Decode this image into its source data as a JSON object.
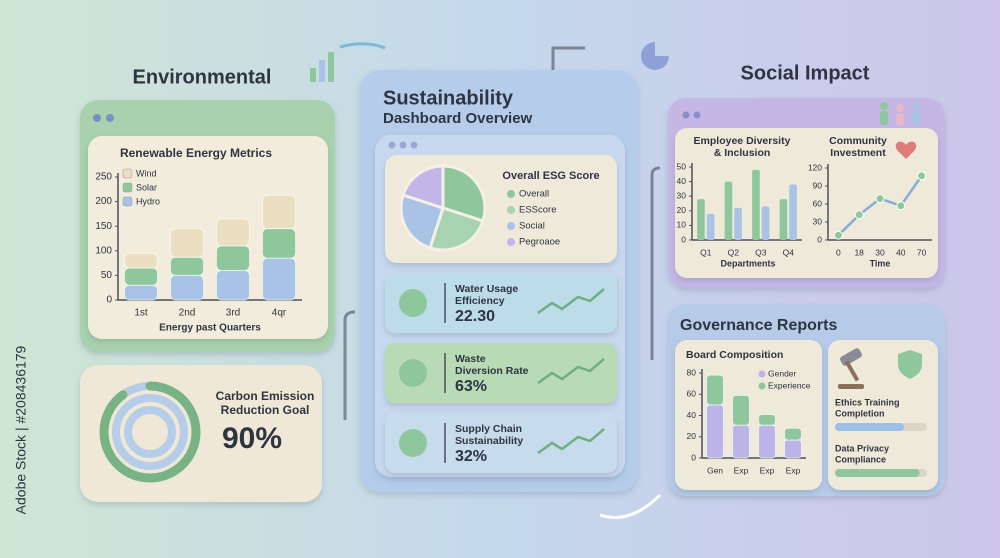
{
  "watermark": "Adobe Stock | #208436179",
  "environmental": {
    "title": "Environmental",
    "renewable": {
      "type": "bar",
      "stacked": true,
      "title": "Renewable Energy Metrics",
      "x_label": "Energy past Quarters",
      "categories": [
        "1st",
        "2nd",
        "3rd",
        "4qr"
      ],
      "series": [
        {
          "name": "Hydro",
          "color": "#a9c3e6",
          "values": [
            30,
            50,
            60,
            85
          ]
        },
        {
          "name": "Solar",
          "color": "#8fc79c",
          "values": [
            35,
            37,
            50,
            60
          ]
        },
        {
          "name": "Wind",
          "color": "#ebdfc2",
          "values": [
            30,
            58,
            55,
            68
          ]
        }
      ],
      "legend_order": [
        2,
        1,
        0
      ],
      "ylim": [
        0,
        250
      ],
      "yticks": [
        0,
        50,
        100,
        150,
        200,
        250
      ]
    },
    "carbon": {
      "title": [
        "Carbon Emission",
        "Reduction Goal"
      ],
      "value": 90,
      "value_label": "90%",
      "xlim": [
        0,
        100
      ],
      "color": "#78b386"
    }
  },
  "overview": {
    "title": "Sustainability",
    "subtitle": "Dashboard Overview",
    "esg": {
      "type": "pie",
      "title": "Overall ESG Score",
      "categories": [
        "Overall",
        "ESScore",
        "Social",
        "Pegroaoe"
      ],
      "values": [
        30,
        25,
        25,
        20
      ],
      "colors": [
        "#8fc79c",
        "#a7d3b0",
        "#a9c3e6",
        "#c2b6e8"
      ]
    },
    "metrics": [
      {
        "label": [
          "Water Usage",
          "Efficiency"
        ],
        "value": 22.3,
        "value_label": "22.30"
      },
      {
        "label": [
          "Waste",
          "Diversion Rate"
        ],
        "value": 63,
        "value_label": "63%"
      },
      {
        "label": [
          "Supply Chain",
          "Sustainability"
        ],
        "value": 32,
        "value_label": "32%"
      }
    ]
  },
  "social": {
    "title": "Social Impact",
    "diversity": {
      "type": "bar",
      "stacked": false,
      "title": [
        "Employee Diversity",
        "& Inclusion"
      ],
      "x_label": "Departments",
      "categories": [
        "Q1",
        "Q2",
        "Q3",
        "Q4"
      ],
      "series": [
        {
          "color": "#8fc79c",
          "values": [
            28,
            40,
            48,
            28
          ]
        },
        {
          "color": "#a9c3e6",
          "values": [
            18,
            22,
            23,
            38
          ]
        }
      ],
      "ylim": [
        0,
        50
      ],
      "yticks": [
        0,
        10,
        20,
        30,
        40,
        50
      ]
    },
    "community": {
      "type": "line",
      "title": [
        "Community",
        "Investment"
      ],
      "x_label": "Time",
      "categories": [
        "0",
        "18",
        "30",
        "40",
        "70"
      ],
      "values": [
        8,
        42,
        69,
        57,
        107
      ],
      "color": "#86acd8",
      "ylim": [
        0,
        120
      ],
      "yticks": [
        0,
        30,
        60,
        90,
        120
      ]
    }
  },
  "governance": {
    "title": "Governance Reports",
    "board": {
      "type": "bar",
      "stacked": true,
      "title": "Board Composition",
      "categories": [
        "Gen",
        "Exp",
        "Exp",
        "Exp"
      ],
      "series": [
        {
          "name": "Gender",
          "color": "#bcb3e6",
          "values": [
            50,
            31,
            31,
            17
          ]
        },
        {
          "name": "Experience",
          "color": "#8fc79c",
          "values": [
            28,
            28,
            10,
            11
          ]
        }
      ],
      "ylim": [
        0,
        80
      ],
      "yticks": [
        0,
        20,
        40,
        60,
        80
      ]
    },
    "progress": [
      {
        "label": [
          "Ethics Training",
          "Completion"
        ],
        "value": 75,
        "xlim": [
          0,
          100
        ],
        "color": "#9cc0e6"
      },
      {
        "label": [
          "Data Privacy",
          "Compliance"
        ],
        "value": 92,
        "xlim": [
          0,
          100
        ],
        "color": "#8fc79c"
      }
    ]
  }
}
